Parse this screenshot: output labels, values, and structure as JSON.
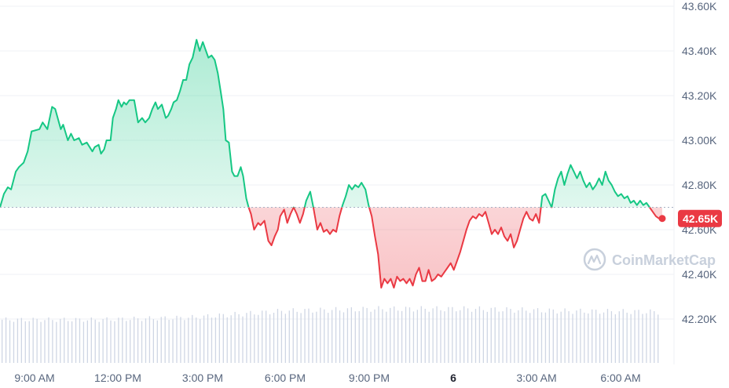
{
  "chart_data": {
    "type": "line",
    "title": "",
    "xlabel": "",
    "ylabel": "",
    "ylim": [
      42.0,
      43.6
    ],
    "baseline": 42.7,
    "current_price_label": "42.65K",
    "y_ticks": [
      "43.60K",
      "43.40K",
      "43.20K",
      "43.00K",
      "42.80K",
      "42.60K",
      "42.40K",
      "42.20K"
    ],
    "x_ticks": [
      "9:00 AM",
      "12:00 PM",
      "3:00 PM",
      "6:00 PM",
      "9:00 PM",
      "6",
      "3:00 AM",
      "6:00 AM"
    ],
    "x_ticks_bold": [
      "6"
    ],
    "series": [
      {
        "values": [
          [
            0,
            42.7
          ],
          [
            0.5,
            42.76
          ],
          [
            1,
            42.79
          ],
          [
            1.4,
            42.78
          ],
          [
            2,
            42.86
          ],
          [
            2.4,
            42.88
          ],
          [
            3,
            42.9
          ],
          [
            3.5,
            42.95
          ],
          [
            4,
            43.04
          ],
          [
            5,
            43.05
          ],
          [
            5.4,
            43.08
          ],
          [
            6,
            43.05
          ],
          [
            6.6,
            43.15
          ],
          [
            7,
            43.14
          ],
          [
            7.7,
            43.05
          ],
          [
            8,
            43.07
          ],
          [
            8.6,
            43.0
          ],
          [
            9,
            43.03
          ],
          [
            9.4,
            43.0
          ],
          [
            10,
            43.01
          ],
          [
            10.4,
            42.98
          ],
          [
            11,
            42.99
          ],
          [
            11.7,
            42.95
          ],
          [
            12,
            42.97
          ],
          [
            12.5,
            42.98
          ],
          [
            12.8,
            42.94
          ],
          [
            13.2,
            42.96
          ],
          [
            13.5,
            43.0
          ],
          [
            14,
            43.0
          ],
          [
            14.3,
            43.1
          ],
          [
            14.7,
            43.14
          ],
          [
            15,
            43.18
          ],
          [
            15.4,
            43.15
          ],
          [
            15.7,
            43.17
          ],
          [
            16,
            43.16
          ],
          [
            16.4,
            43.18
          ],
          [
            17,
            43.18
          ],
          [
            17.5,
            43.08
          ],
          [
            18,
            43.1
          ],
          [
            18.4,
            43.08
          ],
          [
            18.9,
            43.1
          ],
          [
            19.3,
            43.14
          ],
          [
            19.7,
            43.17
          ],
          [
            20,
            43.14
          ],
          [
            20.5,
            43.16
          ],
          [
            21,
            43.1
          ],
          [
            21.3,
            43.11
          ],
          [
            21.7,
            43.14
          ],
          [
            22,
            43.17
          ],
          [
            22.4,
            43.18
          ],
          [
            22.8,
            43.22
          ],
          [
            23.2,
            43.27
          ],
          [
            23.6,
            43.27
          ],
          [
            24,
            43.34
          ],
          [
            24.4,
            43.37
          ],
          [
            24.9,
            43.45
          ],
          [
            25.3,
            43.4
          ],
          [
            25.7,
            43.44
          ],
          [
            26,
            43.41
          ],
          [
            26.4,
            43.37
          ],
          [
            26.8,
            43.38
          ],
          [
            27.2,
            43.36
          ],
          [
            27.6,
            43.3
          ],
          [
            28,
            43.21
          ],
          [
            28.3,
            43.14
          ],
          [
            28.6,
            43.0
          ],
          [
            29,
            42.99
          ],
          [
            29.4,
            42.86
          ],
          [
            29.7,
            42.84
          ],
          [
            30.1,
            42.84
          ],
          [
            30.5,
            42.88
          ],
          [
            30.8,
            42.84
          ],
          [
            31.2,
            42.74
          ],
          [
            31.5,
            42.7
          ],
          [
            31.8,
            42.67
          ],
          [
            32.2,
            42.6
          ],
          [
            32.7,
            42.63
          ],
          [
            33,
            42.62
          ],
          [
            33.5,
            42.64
          ],
          [
            34,
            42.55
          ],
          [
            34.4,
            42.53
          ],
          [
            34.8,
            42.57
          ],
          [
            35.2,
            42.6
          ],
          [
            35.5,
            42.66
          ],
          [
            36,
            42.69
          ],
          [
            36.4,
            42.63
          ],
          [
            36.8,
            42.67
          ],
          [
            37.2,
            42.7
          ],
          [
            37.6,
            42.67
          ],
          [
            38,
            42.63
          ],
          [
            38.4,
            42.67
          ],
          [
            38.8,
            42.73
          ],
          [
            39.3,
            42.77
          ],
          [
            39.7,
            42.7
          ],
          [
            40.2,
            42.6
          ],
          [
            40.6,
            42.63
          ],
          [
            41,
            42.59
          ],
          [
            41.4,
            42.6
          ],
          [
            41.8,
            42.58
          ],
          [
            42.2,
            42.6
          ],
          [
            42.6,
            42.59
          ],
          [
            43,
            42.66
          ],
          [
            43.4,
            42.71
          ],
          [
            43.8,
            42.75
          ],
          [
            44.2,
            42.8
          ],
          [
            44.6,
            42.78
          ],
          [
            45,
            42.8
          ],
          [
            45.4,
            42.79
          ],
          [
            45.8,
            42.81
          ],
          [
            46.3,
            42.78
          ],
          [
            46.7,
            42.71
          ],
          [
            47.1,
            42.66
          ],
          [
            47.5,
            42.57
          ],
          [
            47.9,
            42.49
          ],
          [
            48.3,
            42.34
          ],
          [
            48.7,
            42.38
          ],
          [
            49.1,
            42.36
          ],
          [
            49.5,
            42.38
          ],
          [
            49.9,
            42.34
          ],
          [
            50.3,
            42.39
          ],
          [
            50.7,
            42.37
          ],
          [
            51.1,
            42.38
          ],
          [
            51.5,
            42.36
          ],
          [
            51.9,
            42.38
          ],
          [
            52.3,
            42.35
          ],
          [
            52.7,
            42.4
          ],
          [
            53.1,
            42.43
          ],
          [
            53.5,
            42.37
          ],
          [
            53.9,
            42.37
          ],
          [
            54.3,
            42.42
          ],
          [
            54.7,
            42.37
          ],
          [
            55.1,
            42.38
          ],
          [
            55.5,
            42.4
          ],
          [
            55.9,
            42.39
          ],
          [
            56.3,
            42.41
          ],
          [
            56.7,
            42.43
          ],
          [
            57.1,
            42.45
          ],
          [
            57.5,
            42.42
          ],
          [
            57.9,
            42.46
          ],
          [
            58.3,
            42.5
          ],
          [
            58.7,
            42.55
          ],
          [
            59.1,
            42.6
          ],
          [
            59.5,
            42.64
          ],
          [
            59.9,
            42.66
          ],
          [
            60.3,
            42.65
          ],
          [
            60.7,
            42.67
          ],
          [
            61.1,
            42.66
          ],
          [
            61.5,
            42.68
          ],
          [
            61.9,
            42.63
          ],
          [
            62.3,
            42.58
          ],
          [
            62.7,
            42.6
          ],
          [
            63.1,
            42.58
          ],
          [
            63.5,
            42.61
          ],
          [
            63.9,
            42.57
          ],
          [
            64.3,
            42.55
          ],
          [
            64.7,
            42.58
          ],
          [
            65.1,
            42.52
          ],
          [
            65.5,
            42.55
          ],
          [
            65.9,
            42.6
          ],
          [
            66.3,
            42.65
          ],
          [
            66.7,
            42.68
          ],
          [
            67.1,
            42.65
          ],
          [
            67.5,
            42.64
          ],
          [
            67.9,
            42.67
          ],
          [
            68.3,
            42.63
          ],
          [
            68.7,
            42.75
          ],
          [
            69.1,
            42.76
          ],
          [
            69.5,
            42.73
          ],
          [
            69.9,
            42.7
          ],
          [
            70.3,
            42.78
          ],
          [
            70.7,
            42.83
          ],
          [
            71.1,
            42.86
          ],
          [
            71.5,
            42.8
          ],
          [
            71.9,
            42.85
          ],
          [
            72.3,
            42.89
          ],
          [
            72.7,
            42.86
          ],
          [
            73.1,
            42.83
          ],
          [
            73.5,
            42.86
          ],
          [
            73.9,
            42.82
          ],
          [
            74.3,
            42.79
          ],
          [
            74.7,
            42.81
          ],
          [
            75.1,
            42.78
          ],
          [
            75.5,
            42.8
          ],
          [
            75.9,
            42.83
          ],
          [
            76.3,
            42.8
          ],
          [
            76.7,
            42.86
          ],
          [
            77.1,
            42.82
          ],
          [
            77.5,
            42.8
          ],
          [
            77.9,
            42.77
          ],
          [
            78.3,
            42.75
          ],
          [
            78.7,
            42.76
          ],
          [
            79.1,
            42.74
          ],
          [
            79.5,
            42.75
          ],
          [
            79.9,
            42.72
          ],
          [
            80.3,
            42.73
          ],
          [
            80.7,
            42.71
          ],
          [
            81.1,
            42.73
          ],
          [
            81.5,
            42.71
          ],
          [
            81.9,
            42.72
          ],
          [
            82.3,
            42.7
          ],
          [
            82.7,
            42.68
          ],
          [
            83.1,
            42.66
          ],
          [
            83.5,
            42.65
          ],
          [
            83.9,
            42.65
          ]
        ]
      }
    ],
    "volume": [
      [
        "9:00 AM",
        1.0
      ],
      [
        "12:00 PM",
        1.0
      ],
      [
        "3:00 PM",
        1.05
      ],
      [
        "6:00 PM",
        1.2
      ],
      [
        "9:00 PM",
        1.25
      ],
      [
        "6",
        1.25
      ],
      [
        "3:00 AM",
        1.2
      ],
      [
        "6:00 AM",
        1.18
      ]
    ],
    "watermark": "CoinMarketCap",
    "colors": {
      "up": "#16c784",
      "down": "#ea3943",
      "up_fill": "#16c784",
      "down_fill": "#ea3943",
      "grid": "#eff2f5",
      "volume": "#cfd6e4",
      "text": "#58667e"
    }
  }
}
